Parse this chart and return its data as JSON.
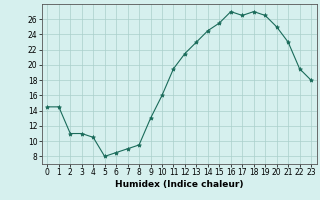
{
  "x": [
    0,
    1,
    2,
    3,
    4,
    5,
    6,
    7,
    8,
    9,
    10,
    11,
    12,
    13,
    14,
    15,
    16,
    17,
    18,
    19,
    20,
    21,
    22,
    23
  ],
  "y": [
    14.5,
    14.5,
    11,
    11,
    10.5,
    8,
    8.5,
    9,
    9.5,
    13,
    16,
    19.5,
    21.5,
    23,
    24.5,
    25.5,
    27,
    26.5,
    27,
    26.5,
    25,
    23,
    19.5,
    18
  ],
  "line_color": "#1a6b5a",
  "marker": "*",
  "marker_size": 3,
  "bg_color": "#d6f0ee",
  "grid_color": "#aacfcb",
  "xlabel": "Humidex (Indice chaleur)",
  "xlim": [
    -0.5,
    23.5
  ],
  "ylim": [
    7,
    28
  ],
  "yticks": [
    8,
    10,
    12,
    14,
    16,
    18,
    20,
    22,
    24,
    26
  ],
  "xticks": [
    0,
    1,
    2,
    3,
    4,
    5,
    6,
    7,
    8,
    9,
    10,
    11,
    12,
    13,
    14,
    15,
    16,
    17,
    18,
    19,
    20,
    21,
    22,
    23
  ],
  "tick_fontsize": 5.5,
  "label_fontsize": 6.5
}
